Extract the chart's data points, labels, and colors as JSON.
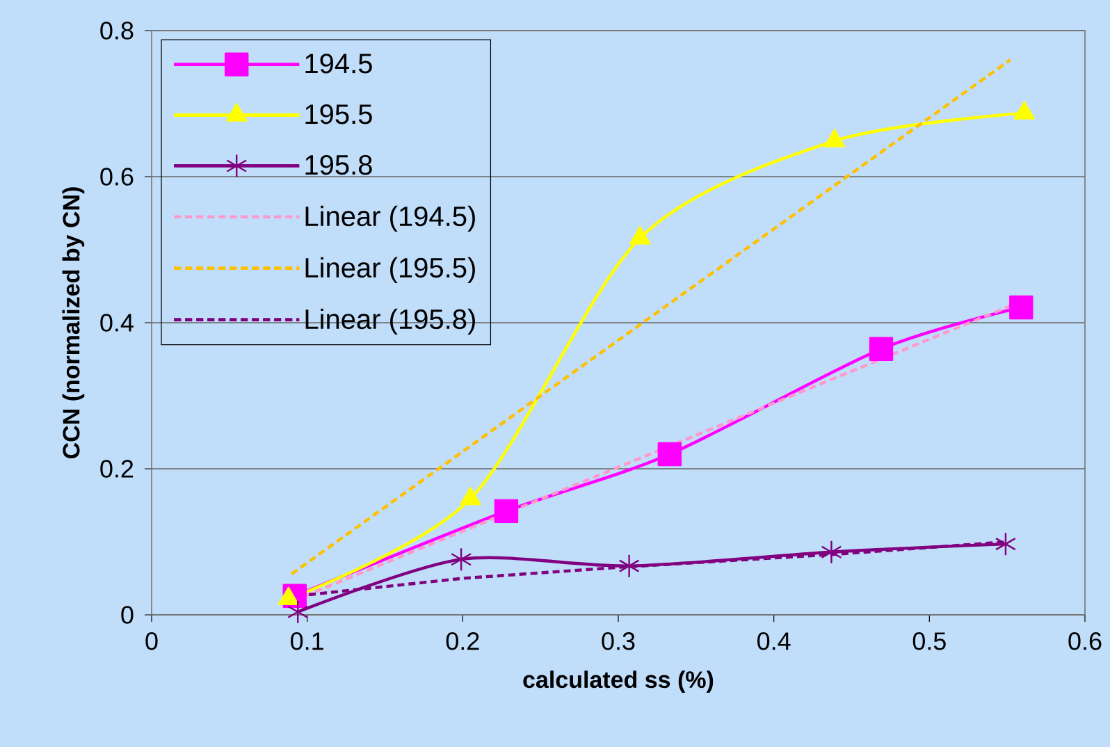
{
  "chart_data": {
    "type": "line",
    "xlabel": "calculated ss (%)",
    "ylabel": "CCN (normalized by CN)",
    "xlim": [
      0,
      0.6
    ],
    "xticks": [
      0,
      0.1,
      0.2,
      0.3,
      0.4,
      0.5,
      0.6
    ],
    "ylim": [
      0,
      0.8
    ],
    "yticks": [
      0,
      0.2,
      0.4,
      0.6,
      0.8
    ],
    "grid": "y",
    "legend": "top left",
    "series": [
      {
        "name": "194.5",
        "color": "#ff00ff",
        "marker": "square",
        "line_style": "solid",
        "x": [
          0.092,
          0.228,
          0.333,
          0.469,
          0.559
        ],
        "values": [
          0.026,
          0.142,
          0.22,
          0.364,
          0.421
        ]
      },
      {
        "name": "195.5",
        "color": "#ffff00",
        "marker": "triangle",
        "line_style": "solid",
        "x": [
          0.088,
          0.205,
          0.314,
          0.439,
          0.561
        ],
        "values": [
          0.022,
          0.159,
          0.516,
          0.649,
          0.687
        ]
      },
      {
        "name": "195.8",
        "color": "#800080",
        "marker": "cross",
        "line_style": "solid",
        "x": [
          0.094,
          0.199,
          0.307,
          0.437,
          0.549
        ],
        "values": [
          0.004,
          0.076,
          0.067,
          0.086,
          0.097
        ]
      },
      {
        "name": "Linear (194.5)",
        "color": "#ff99cc",
        "marker": "none",
        "line_style": "dashed",
        "x": [
          0.092,
          0.56
        ],
        "values": [
          0.02,
          0.43
        ]
      },
      {
        "name": "Linear (195.5)",
        "color": "#ffc000",
        "marker": "none",
        "line_style": "dashed",
        "x": [
          0.09,
          0.552
        ],
        "values": [
          0.056,
          0.76
        ]
      },
      {
        "name": "Linear (195.8)",
        "color": "#800080",
        "marker": "none",
        "line_style": "dashed",
        "x": [
          0.094,
          0.2,
          0.3,
          0.44,
          0.55
        ],
        "values": [
          0.026,
          0.05,
          0.065,
          0.083,
          0.1
        ]
      }
    ]
  }
}
